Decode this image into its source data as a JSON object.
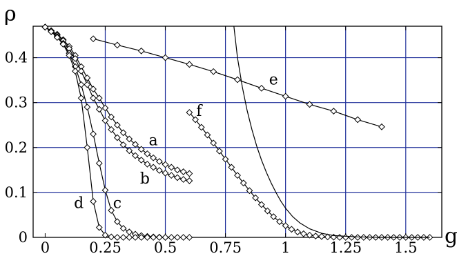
{
  "chart_data": {
    "type": "line",
    "xlabel": "g",
    "ylabel": "ρ",
    "xlim": [
      -0.05,
      1.65
    ],
    "ylim": [
      0,
      0.47
    ],
    "xticks": [
      0,
      0.25,
      0.5,
      0.75,
      1,
      1.25,
      1.5
    ],
    "xtick_labels": [
      "0",
      "0.25",
      "0.5",
      "0.75",
      "1",
      "1.25",
      "1.5"
    ],
    "yticks": [
      0,
      0.1,
      0.2,
      0.3,
      0.4
    ],
    "ytick_labels": [
      "0",
      "0.1",
      "0.2",
      "0.3",
      "0.4"
    ],
    "grid": true,
    "grid_color": "#1f2f9a",
    "series": [
      {
        "name": "a",
        "marker": "diamond",
        "x": [
          0,
          0.025,
          0.05,
          0.075,
          0.1,
          0.125,
          0.15,
          0.175,
          0.2,
          0.225,
          0.25,
          0.275,
          0.3,
          0.325,
          0.35,
          0.375,
          0.4,
          0.425,
          0.45,
          0.475,
          0.5,
          0.525,
          0.55,
          0.575,
          0.6
        ],
        "y": [
          0.468,
          0.46,
          0.452,
          0.44,
          0.425,
          0.405,
          0.38,
          0.355,
          0.33,
          0.31,
          0.288,
          0.268,
          0.25,
          0.233,
          0.219,
          0.207,
          0.196,
          0.186,
          0.177,
          0.169,
          0.162,
          0.156,
          0.15,
          0.146,
          0.142
        ]
      },
      {
        "name": "b",
        "marker": "diamond",
        "x": [
          0,
          0.025,
          0.05,
          0.075,
          0.1,
          0.125,
          0.15,
          0.175,
          0.2,
          0.225,
          0.25,
          0.275,
          0.3,
          0.325,
          0.35,
          0.375,
          0.4,
          0.425,
          0.45,
          0.475,
          0.5,
          0.525,
          0.55,
          0.575,
          0.6
        ],
        "y": [
          0.468,
          0.46,
          0.45,
          0.438,
          0.42,
          0.398,
          0.37,
          0.34,
          0.31,
          0.285,
          0.26,
          0.24,
          0.222,
          0.206,
          0.193,
          0.182,
          0.172,
          0.163,
          0.156,
          0.149,
          0.143,
          0.138,
          0.133,
          0.129,
          0.126
        ]
      },
      {
        "name": "c",
        "marker": "diamond",
        "x": [
          0,
          0.025,
          0.05,
          0.075,
          0.1,
          0.125,
          0.15,
          0.175,
          0.2,
          0.225,
          0.25,
          0.275,
          0.3,
          0.325,
          0.35,
          0.375,
          0.4,
          0.425,
          0.45,
          0.475,
          0.5,
          0.525,
          0.55,
          0.575,
          0.6
        ],
        "y": [
          0.468,
          0.458,
          0.447,
          0.432,
          0.41,
          0.38,
          0.34,
          0.29,
          0.23,
          0.165,
          0.105,
          0.06,
          0.035,
          0.02,
          0.012,
          0.007,
          0.004,
          0.002,
          0.001,
          0.0005,
          0,
          0,
          0,
          0,
          0
        ]
      },
      {
        "name": "d",
        "marker": "diamond",
        "x": [
          0,
          0.025,
          0.05,
          0.075,
          0.1,
          0.125,
          0.15,
          0.175,
          0.2,
          0.225,
          0.25,
          0.275,
          0.3,
          0.325,
          0.35,
          0.375,
          0.4,
          0.425,
          0.45,
          0.475,
          0.5
        ],
        "y": [
          0.468,
          0.458,
          0.445,
          0.43,
          0.405,
          0.37,
          0.31,
          0.2,
          0.08,
          0.022,
          0.005,
          0.001,
          0,
          0,
          0,
          0,
          0,
          0,
          0,
          0,
          0
        ]
      },
      {
        "name": "e",
        "marker": "diamond",
        "x": [
          0.2,
          0.3,
          0.4,
          0.5,
          0.6,
          0.7,
          0.8,
          0.9,
          1.0,
          1.1,
          1.2,
          1.3,
          1.4
        ],
        "y": [
          0.442,
          0.428,
          0.415,
          0.4,
          0.385,
          0.369,
          0.351,
          0.332,
          0.314,
          0.296,
          0.281,
          0.262,
          0.246
        ]
      },
      {
        "name": "f",
        "marker": "diamond",
        "x": [
          0.6,
          0.625,
          0.65,
          0.675,
          0.7,
          0.725,
          0.75,
          0.775,
          0.8,
          0.825,
          0.85,
          0.875,
          0.9,
          0.925,
          0.95,
          0.975,
          1.0,
          1.025,
          1.05,
          1.075,
          1.1,
          1.125,
          1.15,
          1.175,
          1.2,
          1.225,
          1.25,
          1.275,
          1.3,
          1.325,
          1.35,
          1.375,
          1.4,
          1.425,
          1.45,
          1.475,
          1.5,
          1.525,
          1.55,
          1.575,
          1.6
        ],
        "y": [
          0.278,
          0.262,
          0.245,
          0.228,
          0.21,
          0.192,
          0.174,
          0.156,
          0.138,
          0.121,
          0.104,
          0.088,
          0.073,
          0.059,
          0.046,
          0.035,
          0.026,
          0.018,
          0.012,
          0.008,
          0.005,
          0.003,
          0.002,
          0.001,
          0.0005,
          0,
          0,
          0,
          0,
          0,
          0,
          0,
          0,
          0,
          0,
          0,
          0,
          0,
          0,
          0,
          0
        ]
      },
      {
        "name": "",
        "marker": "none",
        "x": [
          0.785,
          0.8,
          0.82,
          0.84,
          0.86,
          0.88,
          0.9,
          0.92,
          0.94,
          0.96,
          0.98,
          1.0,
          1.03,
          1.06,
          1.1,
          1.15,
          1.2,
          1.3,
          1.4,
          1.5,
          1.6
        ],
        "y": [
          0.47,
          0.4,
          0.335,
          0.283,
          0.24,
          0.203,
          0.172,
          0.145,
          0.121,
          0.1,
          0.081,
          0.065,
          0.046,
          0.032,
          0.019,
          0.009,
          0.004,
          0.001,
          0,
          0,
          0
        ]
      }
    ],
    "annotations": [
      {
        "text": "a",
        "x": 0.45,
        "y": 0.205
      },
      {
        "text": "b",
        "x": 0.415,
        "y": 0.12
      },
      {
        "text": "c",
        "x": 0.3,
        "y": 0.065
      },
      {
        "text": "d",
        "x": 0.14,
        "y": 0.065
      },
      {
        "text": "e",
        "x": 0.95,
        "y": 0.34
      },
      {
        "text": "f",
        "x": 0.64,
        "y": 0.27
      }
    ]
  }
}
